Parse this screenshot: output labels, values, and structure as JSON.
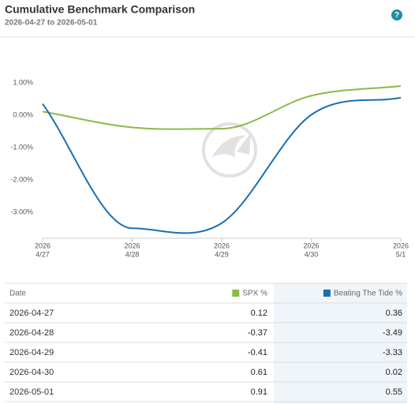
{
  "header": {
    "title": "Cumulative Benchmark Comparison",
    "subtitle": "2026-04-27 to 2026-05-01",
    "help": "?"
  },
  "chart_data": {
    "type": "line",
    "categories": [
      [
        "2026",
        "4/27"
      ],
      [
        "2026",
        "4/28"
      ],
      [
        "2026",
        "4/29"
      ],
      [
        "2026",
        "4/30"
      ],
      [
        "2026",
        "5/1"
      ]
    ],
    "series": [
      {
        "name": "SPX %",
        "color": "#8db94a",
        "values": [
          0.12,
          -0.37,
          -0.41,
          0.61,
          0.91
        ]
      },
      {
        "name": "Beating The Tide %",
        "color": "#1a6fb0",
        "values": [
          0.36,
          -3.49,
          -3.33,
          0.02,
          0.55
        ]
      }
    ],
    "ylim": [
      -3.8,
      2.4
    ],
    "yticks": [
      {
        "value": 1,
        "label": "1.00%"
      },
      {
        "value": 0,
        "label": "0.00%"
      },
      {
        "value": -1,
        "label": "-1.00%"
      },
      {
        "value": -2,
        "label": "-2.00%"
      },
      {
        "value": -3,
        "label": "-3.00%"
      }
    ],
    "grid": false
  },
  "table": {
    "date_header": "Date",
    "dates": [
      "2026-04-27",
      "2026-04-28",
      "2026-04-29",
      "2026-04-30",
      "2026-05-01"
    ]
  }
}
